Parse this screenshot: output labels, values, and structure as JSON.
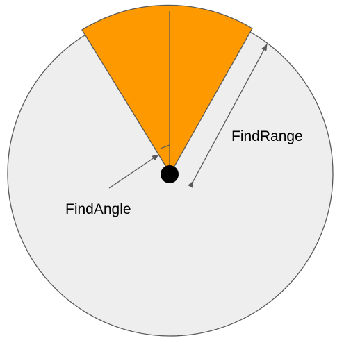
{
  "labels": {
    "find_range": "FindRange",
    "find_angle": "FindAngle"
  },
  "colors": {
    "background_circle": "#eeeeee",
    "circle_stroke": "#595959",
    "sector_fill": "#ff9900",
    "sector_stroke": "#595959",
    "center_dot": "#000000",
    "arrow": "#595959"
  }
}
